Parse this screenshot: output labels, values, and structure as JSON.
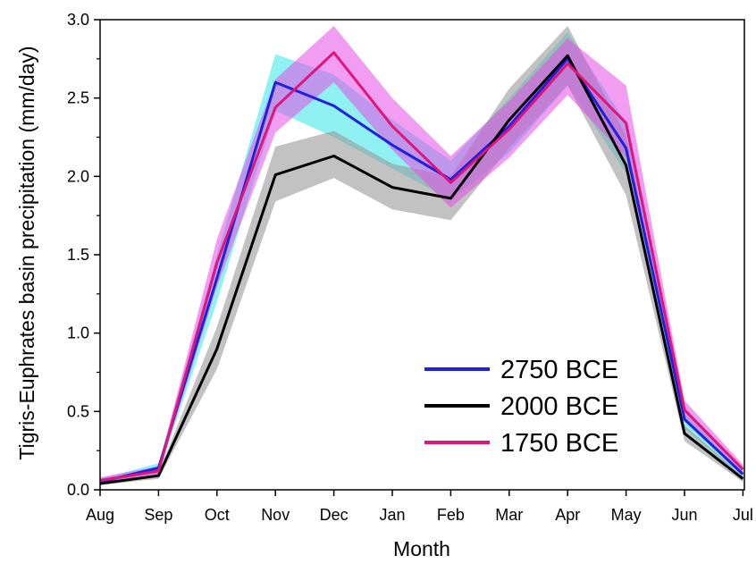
{
  "chart_data": {
    "type": "line",
    "title": "",
    "xlabel": "Month",
    "ylabel": "Tigris-Euphrates basin precipitation (mm/day)",
    "categories": [
      "Aug",
      "Sep",
      "Oct",
      "Nov",
      "Dec",
      "Jan",
      "Feb",
      "Mar",
      "Apr",
      "May",
      "Jun",
      "Jul"
    ],
    "ylim": [
      0,
      3.0
    ],
    "yticks": [
      "0.0",
      "0.5",
      "1.0",
      "1.5",
      "2.0",
      "2.5",
      "3.0"
    ],
    "grid": false,
    "legend_position": "bottom-right",
    "series": [
      {
        "name": "2750 BCE",
        "color": "#1f1fe0",
        "band_color": "#33e6e6",
        "values": [
          0.05,
          0.14,
          1.35,
          2.6,
          2.45,
          2.2,
          1.98,
          2.32,
          2.75,
          2.18,
          0.45,
          0.1
        ],
        "lower": [
          0.04,
          0.11,
          1.2,
          2.42,
          2.25,
          2.05,
          1.85,
          2.15,
          2.58,
          2.02,
          0.39,
          0.08
        ],
        "upper": [
          0.07,
          0.17,
          1.5,
          2.78,
          2.65,
          2.36,
          2.1,
          2.5,
          2.92,
          2.34,
          0.51,
          0.12
        ]
      },
      {
        "name": "2000 BCE",
        "color": "#000000",
        "band_color": "#9a9a9a",
        "values": [
          0.04,
          0.09,
          0.9,
          2.01,
          2.13,
          1.93,
          1.86,
          2.36,
          2.77,
          2.07,
          0.36,
          0.07
        ],
        "lower": [
          0.03,
          0.07,
          0.77,
          1.84,
          1.99,
          1.79,
          1.72,
          2.18,
          2.58,
          1.88,
          0.31,
          0.05
        ],
        "upper": [
          0.05,
          0.11,
          1.04,
          2.19,
          2.29,
          2.08,
          2.0,
          2.56,
          2.96,
          2.26,
          0.41,
          0.09
        ]
      },
      {
        "name": "1750 BCE",
        "color": "#e0147a",
        "band_color": "#e64de6",
        "values": [
          0.06,
          0.12,
          1.45,
          2.44,
          2.79,
          2.32,
          1.96,
          2.3,
          2.72,
          2.34,
          0.51,
          0.13
        ],
        "lower": [
          0.04,
          0.1,
          1.3,
          2.28,
          2.6,
          2.17,
          1.8,
          2.12,
          2.52,
          2.12,
          0.45,
          0.1
        ],
        "upper": [
          0.08,
          0.15,
          1.6,
          2.62,
          2.96,
          2.5,
          2.13,
          2.48,
          2.88,
          2.58,
          0.57,
          0.16
        ]
      }
    ]
  }
}
